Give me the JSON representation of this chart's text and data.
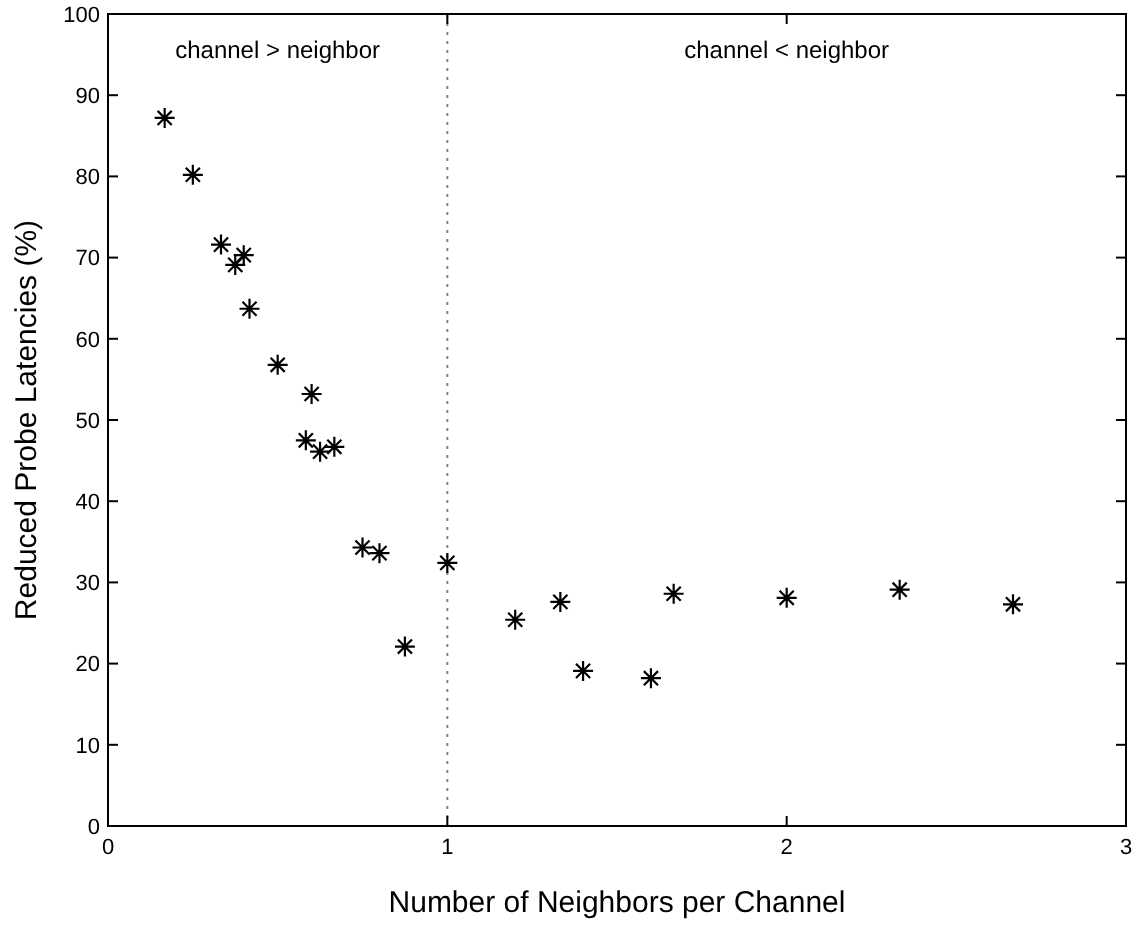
{
  "chart_data": {
    "type": "scatter",
    "xlabel": "Number of Neighbors per Channel",
    "ylabel": "Reduced Probe Latencies (%)",
    "x": [
      0.167,
      0.25,
      0.333,
      0.375,
      0.4,
      0.417,
      0.5,
      0.583,
      0.6,
      0.625,
      0.667,
      0.75,
      0.8,
      0.875,
      1,
      1.2,
      1.333,
      1.4,
      1.6,
      1.667,
      2,
      2.333,
      2.667
    ],
    "series": [
      {
        "color": "#000000",
        "values": [
          87.2,
          80.2,
          71.6,
          69.1,
          70.3,
          63.7,
          56.8,
          47.5,
          53.2,
          46.1,
          46.7,
          34.3,
          33.6,
          22.1,
          32.4,
          25.4,
          27.6,
          19.1,
          18.2,
          28.6,
          28.1,
          29.1,
          27.3
        ]
      }
    ],
    "marker": "cross",
    "xlim": [
      0,
      3
    ],
    "xticks": [
      0,
      1,
      2,
      3
    ],
    "ylim": [
      0,
      100
    ],
    "yticks": [
      0,
      10,
      20,
      30,
      40,
      50,
      60,
      70,
      80,
      90,
      100
    ],
    "ref_lines": [
      {
        "axis": "x",
        "value": 1,
        "line_style": "dotted",
        "color": "#808080"
      }
    ],
    "annotations": [
      "channel > neighbor",
      "channel < neighbor"
    ],
    "grid": false
  }
}
